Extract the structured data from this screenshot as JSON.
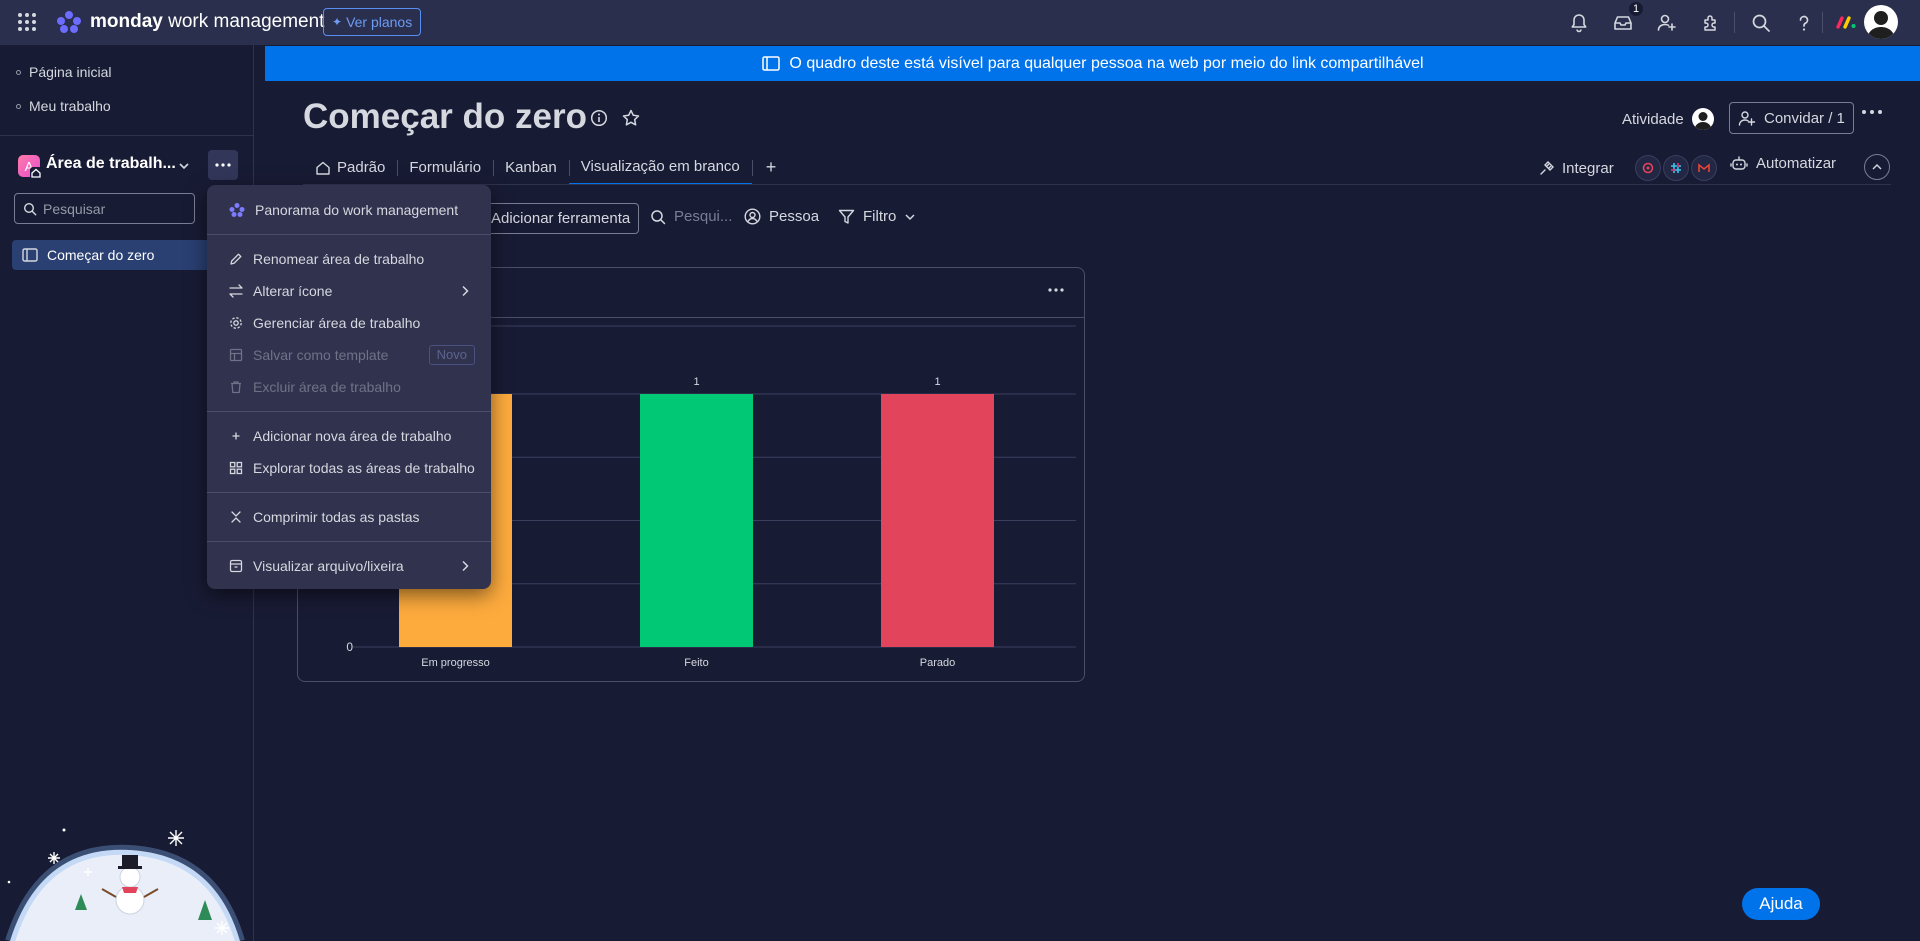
{
  "topbar": {
    "logo_brand": "monday",
    "logo_product": "work management",
    "plans_button": "Ver planos",
    "inbox_count": "1",
    "icons": [
      "apps-grid-icon",
      "bell-icon",
      "inbox-icon",
      "invite-user-icon",
      "integrations-icon",
      "search-icon",
      "help-icon",
      "monday-logo-icon",
      "avatar"
    ]
  },
  "sidebar": {
    "home": "Página inicial",
    "my_work": "Meu trabalho",
    "workspace_initial": "A",
    "workspace_name": "Área de trabalh...",
    "search_placeholder": "Pesquisar",
    "board_item": "Começar do zero"
  },
  "banner": {
    "text": "O quadro deste está visível para qualquer pessoa na web por meio do link compartilhável"
  },
  "board": {
    "title": "Começar do zero",
    "activity_label": "Atividade",
    "invite_label": "Convidar / 1",
    "tabs": [
      {
        "label": "Padrão",
        "active": false
      },
      {
        "label": "Formulário",
        "active": false
      },
      {
        "label": "Kanban",
        "active": false
      },
      {
        "label": "Visualização em branco",
        "active": true
      }
    ],
    "tab_add": "+",
    "integrate_label": "Integrar",
    "automate_label": "Automatizar"
  },
  "toolbar": {
    "add_tool": "Adicionar ferramenta",
    "search": "Pesqui...",
    "person": "Pessoa",
    "filter": "Filtro"
  },
  "menu": {
    "items": [
      {
        "label": "Panorama do work management",
        "icon": "monday-flower-icon",
        "disabled": false
      },
      {
        "label": "Renomear área de trabalho",
        "icon": "pencil-icon",
        "disabled": false
      },
      {
        "label": "Alterar ícone",
        "icon": "swap-icon",
        "disabled": false,
        "submenu": true
      },
      {
        "label": "Gerenciar área de trabalho",
        "icon": "gear-icon",
        "disabled": false
      },
      {
        "label": "Salvar como template",
        "icon": "template-icon",
        "disabled": true,
        "tag": "Novo"
      },
      {
        "label": "Excluir área de trabalho",
        "icon": "trash-icon",
        "disabled": true
      },
      {
        "label": "Adicionar nova área de trabalho",
        "icon": "plus-icon",
        "disabled": false
      },
      {
        "label": "Explorar todas as áreas de trabalho",
        "icon": "grid-icon",
        "disabled": false
      },
      {
        "label": "Comprimir todas as pastas",
        "icon": "collapse-icon",
        "disabled": false
      },
      {
        "label": "Visualizar arquivo/lixeira",
        "icon": "archive-icon",
        "disabled": false,
        "submenu": true
      }
    ]
  },
  "chart_data": {
    "type": "bar",
    "categories": [
      "Em progresso",
      "Feito",
      "Parado"
    ],
    "values": [
      1,
      1,
      1
    ],
    "data_labels": [
      "",
      "1",
      "1"
    ],
    "colors": [
      "#fdab3d",
      "#00c875",
      "#e2445c"
    ],
    "ylim": [
      0,
      1
    ],
    "y_tick_labels": [
      "0"
    ],
    "grid": true
  },
  "help_button": "Ajuda",
  "colors": {
    "background": "#181b34",
    "topbar": "#292f4c",
    "accent": "#0073ea",
    "menu": "#30324e"
  }
}
